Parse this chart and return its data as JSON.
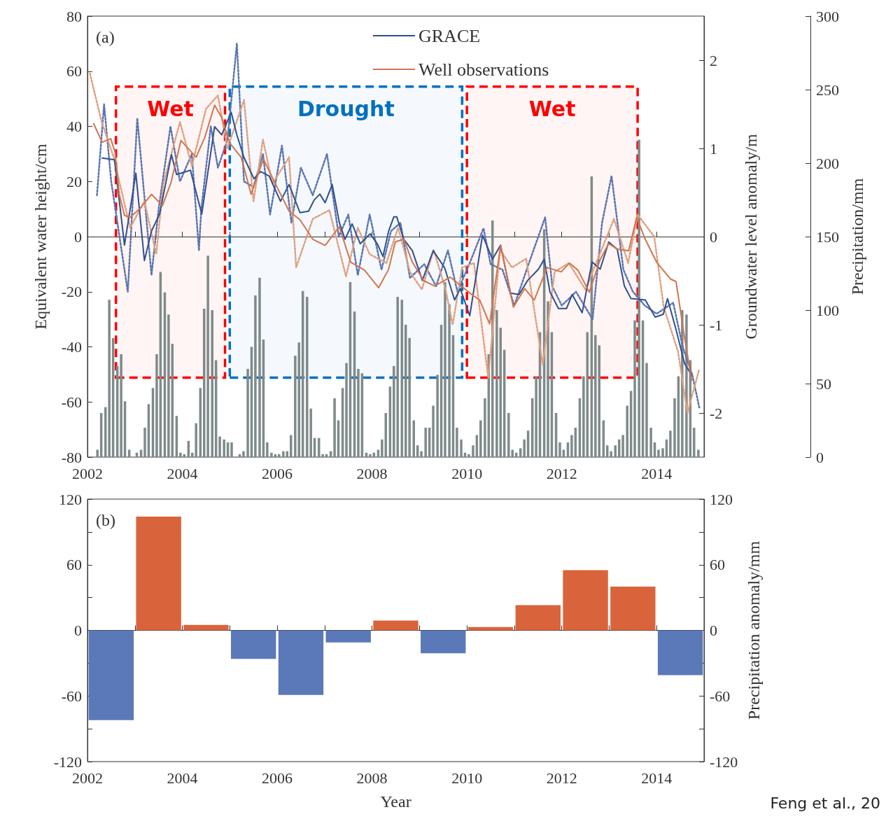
{
  "chart_data": [
    {
      "type": "line",
      "annotations": [
        "(a)"
      ],
      "ylabel": "Equivalent water height/cm",
      "y2label": "Groundwater level anomaly/m",
      "y3label": "Precipitation/mm",
      "xlim": [
        2002,
        2015
      ],
      "xticks": [
        2002,
        {
          "value": 2003,
          "label": null
        },
        2004,
        {
          "value": 2005,
          "label": null
        },
        2006,
        {
          "value": 2007,
          "label": null
        },
        2008,
        {
          "value": 2009,
          "label": null
        },
        2010,
        {
          "value": 2011,
          "label": null
        },
        2012,
        {
          "value": 2013,
          "label": null
        },
        2014
      ],
      "ylim": [
        -80,
        80
      ],
      "yticks": [
        -80,
        -60,
        -40,
        -20,
        0,
        20,
        40,
        60,
        80
      ],
      "y2lim": [
        -2.5,
        2.5
      ],
      "y2ticks": [
        -2,
        -1,
        0,
        1,
        2
      ],
      "y3lim": [
        0,
        300
      ],
      "y3ticks": [
        0,
        50,
        100,
        150,
        200,
        250,
        300
      ],
      "legend": "top",
      "bands": [
        {
          "axis": "x",
          "from": 2002.6,
          "to": 2004.9,
          "label": "Wet",
          "color": "#ff0000"
        },
        {
          "axis": "x",
          "from": 2005.0,
          "to": 2009.9,
          "label": "Drought",
          "color": "#0070c0"
        },
        {
          "axis": "x",
          "from": 2010.0,
          "to": 2013.6,
          "label": "Wet",
          "color": "#ff0000"
        }
      ],
      "series": [
        {
          "type": "bar",
          "axis": "y3",
          "color": "#7f8a8a",
          "x": [
            2002.21,
            2002.29,
            2002.38,
            2002.46,
            2002.54,
            2002.63,
            2002.71,
            2002.79,
            2002.88,
            2002.96,
            2003.04,
            2003.13,
            2003.21,
            2003.29,
            2003.38,
            2003.46,
            2003.54,
            2003.63,
            2003.71,
            2003.79,
            2003.88,
            2003.96,
            2004.04,
            2004.13,
            2004.21,
            2004.29,
            2004.38,
            2004.46,
            2004.54,
            2004.63,
            2004.71,
            2004.79,
            2004.88,
            2004.96,
            2005.04,
            2005.13,
            2005.21,
            2005.29,
            2005.38,
            2005.46,
            2005.54,
            2005.63,
            2005.71,
            2005.79,
            2005.88,
            2005.96,
            2006.04,
            2006.13,
            2006.21,
            2006.29,
            2006.38,
            2006.46,
            2006.54,
            2006.63,
            2006.71,
            2006.79,
            2006.88,
            2006.96,
            2007.04,
            2007.13,
            2007.21,
            2007.29,
            2007.38,
            2007.46,
            2007.54,
            2007.63,
            2007.71,
            2007.79,
            2007.88,
            2007.96,
            2008.04,
            2008.13,
            2008.21,
            2008.29,
            2008.38,
            2008.46,
            2008.54,
            2008.63,
            2008.71,
            2008.79,
            2008.88,
            2008.96,
            2009.04,
            2009.13,
            2009.21,
            2009.29,
            2009.38,
            2009.46,
            2009.54,
            2009.63,
            2009.71,
            2009.79,
            2009.88,
            2009.96,
            2010.04,
            2010.13,
            2010.21,
            2010.29,
            2010.38,
            2010.46,
            2010.54,
            2010.63,
            2010.71,
            2010.79,
            2010.88,
            2010.96,
            2011.04,
            2011.13,
            2011.21,
            2011.29,
            2011.38,
            2011.46,
            2011.54,
            2011.63,
            2011.71,
            2011.79,
            2011.88,
            2011.96,
            2012.04,
            2012.13,
            2012.21,
            2012.29,
            2012.38,
            2012.46,
            2012.54,
            2012.63,
            2012.71,
            2012.79,
            2012.88,
            2012.96,
            2013.04,
            2013.13,
            2013.21,
            2013.29,
            2013.38,
            2013.46,
            2013.54,
            2013.63,
            2013.71,
            2013.79,
            2013.88,
            2013.96,
            2014.04,
            2014.13,
            2014.21,
            2014.29,
            2014.38,
            2014.46,
            2014.54,
            2014.63,
            2014.71,
            2014.79,
            2014.88
          ],
          "values": [
            5,
            30,
            34,
            107,
            81,
            62,
            70,
            38,
            5,
            0,
            3,
            5,
            20,
            36,
            47,
            70,
            126,
            112,
            97,
            77,
            28,
            3,
            2,
            11,
            3,
            23,
            47,
            101,
            137,
            100,
            66,
            14,
            12,
            10,
            10,
            0,
            2,
            4,
            60,
            75,
            110,
            122,
            80,
            10,
            3,
            2,
            2,
            4,
            4,
            15,
            69,
            78,
            113,
            109,
            33,
            13,
            13,
            2,
            2,
            4,
            40,
            25,
            47,
            64,
            119,
            99,
            60,
            57,
            3,
            2,
            3,
            5,
            12,
            30,
            48,
            62,
            109,
            107,
            90,
            81,
            25,
            8,
            4,
            20,
            20,
            35,
            56,
            90,
            119,
            104,
            83,
            20,
            12,
            3,
            2,
            8,
            15,
            25,
            40,
            70,
            161,
            100,
            88,
            73,
            30,
            5,
            3,
            6,
            12,
            18,
            40,
            55,
            85,
            155,
            106,
            85,
            30,
            10,
            5,
            10,
            15,
            20,
            40,
            55,
            85,
            191,
            83,
            76,
            25,
            8,
            4,
            8,
            12,
            15,
            35,
            45,
            93,
            216,
            93,
            64,
            20,
            10,
            5,
            6,
            12,
            18,
            40,
            55,
            100,
            97,
            66,
            20,
            5
          ]
        },
        {
          "line_style": "dotted",
          "color": "#5a74b0",
          "x": [
            2002.2,
            2002.35,
            2002.5,
            2002.85,
            2003.05,
            2003.35,
            2003.5,
            2003.75,
            2003.95,
            2004.2,
            2004.35,
            2004.4,
            2004.6,
            2004.75,
            2004.95,
            2005.15,
            2005.3,
            2005.5,
            2005.7,
            2005.85,
            2006.1,
            2006.3,
            2006.5,
            2006.75,
            2007.05,
            2007.3,
            2007.5,
            2007.7,
            2007.95,
            2008.2,
            2008.4,
            2008.6,
            2008.8,
            2009.1,
            2009.35,
            2009.6,
            2009.8,
            2010.05,
            2010.35,
            2010.5,
            2010.75,
            2011.0,
            2011.3,
            2011.65,
            2011.8,
            2012.0,
            2012.3,
            2012.65,
            2012.85,
            2013.05,
            2013.3,
            2013.5,
            2013.75,
            2014.0,
            2014.35,
            2014.55,
            2014.75,
            2014.9
          ],
          "values": [
            15,
            48,
            20,
            -20,
            43,
            -14,
            10,
            40,
            20,
            30,
            -5,
            10,
            40,
            25,
            35,
            70,
            20,
            18,
            30,
            8,
            33,
            5,
            25,
            15,
            30,
            0,
            8,
            -14,
            8,
            -12,
            2,
            5,
            -15,
            -10,
            -18,
            -5,
            -20,
            -10,
            3,
            -10,
            -12,
            -25,
            -10,
            7,
            -18,
            -25,
            -20,
            -30,
            5,
            22,
            -12,
            -20,
            -25,
            -28,
            -24,
            -40,
            -50,
            -62
          ]
        },
        {
          "line_style": "dotted",
          "axis": "y2",
          "color": "#e0a080",
          "x": [
            2002.05,
            2002.3,
            2002.55,
            2002.9,
            2003.2,
            2003.45,
            2003.6,
            2003.95,
            2004.2,
            2004.5,
            2004.75,
            2004.95,
            2005.3,
            2005.5,
            2005.7,
            2005.9,
            2006.25,
            2006.4,
            2006.75,
            2007.1,
            2007.45,
            2007.7,
            2007.95,
            2008.3,
            2008.55,
            2008.8,
            2009.05,
            2009.3,
            2009.55,
            2009.7,
            2009.9,
            2010.15,
            2010.45,
            2010.7,
            2010.95,
            2011.25,
            2011.6,
            2011.85,
            2012.15,
            2012.5,
            2012.8,
            2013.1,
            2013.4,
            2013.6,
            2013.95,
            2014.15,
            2014.45,
            2014.65,
            2014.9
          ],
          "values": [
            1.85,
            1.3,
            0.9,
            0.1,
            0.4,
            -0.2,
            0.6,
            1.3,
            0.8,
            1.45,
            1.6,
            1.0,
            1.55,
            0.4,
            1.1,
            0.6,
            0.9,
            -0.35,
            0.2,
            0.3,
            -0.45,
            0.1,
            -0.2,
            -0.3,
            0.1,
            -0.4,
            -0.6,
            -0.15,
            -0.6,
            -1.0,
            -0.35,
            -0.3,
            -1.6,
            -0.15,
            -0.35,
            -0.25,
            -1.45,
            -0.4,
            -0.3,
            -0.6,
            -0.2,
            0.2,
            -0.3,
            0.25,
            0.0,
            -0.8,
            -1.3,
            -2.0,
            -1.5
          ]
        },
        {
          "name": "GRACE",
          "line_style": "solid",
          "color": "#2f4f8f",
          "x": [
            2002.31,
            2002.57,
            2002.78,
            2003.02,
            2003.2,
            2003.35,
            2003.52,
            2003.77,
            2003.88,
            2004.17,
            2004.41,
            2004.68,
            2004.83,
            2005.03,
            2005.15,
            2005.3,
            2005.51,
            2005.65,
            2005.83,
            2006.07,
            2006.25,
            2006.48,
            2006.66,
            2006.78,
            2006.9,
            2007.01,
            2007.16,
            2007.31,
            2007.43,
            2007.58,
            2007.75,
            2007.96,
            2008.11,
            2008.23,
            2008.35,
            2008.46,
            2008.52,
            2008.67,
            2008.85,
            2009.06,
            2009.29,
            2009.53,
            2009.74,
            2009.86,
            2010.06,
            2010.33,
            2010.54,
            2010.71,
            2010.92,
            2011.1,
            2011.28,
            2011.51,
            2011.63,
            2011.75,
            2011.93,
            2012.1,
            2012.22,
            2012.43,
            2012.64,
            2012.81,
            2012.99,
            2013.17,
            2013.32,
            2013.46,
            2013.76,
            2013.97,
            2014.14,
            2014.23,
            2014.41,
            2014.59,
            2014.74
          ],
          "values": [
            28.5,
            27.9,
            -3.1,
            23.0,
            -8.7,
            2.0,
            8.2,
            29.7,
            22.5,
            24.1,
            8.2,
            39.9,
            36.9,
            45.1,
            36.9,
            28.7,
            21.0,
            23.6,
            22.0,
            12.8,
            18.9,
            8.7,
            9.2,
            13.3,
            15.4,
            12.3,
            18.9,
            5.1,
            -1.0,
            4.6,
            -2.6,
            1.0,
            -2.6,
            -7.2,
            2.0,
            7.2,
            7.2,
            -1.0,
            -5.1,
            -15.9,
            -5.1,
            -11.3,
            -23.0,
            -18.9,
            -28.7,
            0.5,
            -8.2,
            -3.1,
            -20.5,
            -21.0,
            -15.9,
            -11.8,
            -8.2,
            -20.0,
            -26.1,
            -26.1,
            -21.0,
            -27.6,
            -9.2,
            -11.8,
            -2.0,
            -4.6,
            -17.9,
            -22.5,
            -23.0,
            -29.2,
            -28.2,
            -22.5,
            -33.8,
            -46.1,
            -50.2
          ]
        },
        {
          "name": "Well observations",
          "line_style": "solid",
          "axis": "y2",
          "color": "#d2754f",
          "x": [
            2002.13,
            2002.31,
            2002.49,
            2002.58,
            2002.67,
            2002.78,
            2002.9,
            2003.11,
            2003.35,
            2003.58,
            2003.76,
            2003.97,
            2004.29,
            2004.47,
            2004.68,
            2004.83,
            2005.0,
            2005.24,
            2005.45,
            2005.71,
            2005.95,
            2006.25,
            2006.48,
            2006.75,
            2007.01,
            2007.31,
            2007.55,
            2007.84,
            2008.14,
            2008.35,
            2008.49,
            2008.67,
            2008.85,
            2009.09,
            2009.32,
            2009.65,
            2009.88,
            2010.06,
            2010.27,
            2010.48,
            2010.71,
            2010.98,
            2011.22,
            2011.42,
            2011.69,
            2011.99,
            2012.16,
            2012.34,
            2012.58,
            2012.81,
            2012.99,
            2013.17,
            2013.41,
            2013.58,
            2013.76,
            2014.0,
            2014.29,
            2014.41,
            2014.59,
            2014.74
          ],
          "values": [
            1.28,
            1.07,
            1.11,
            0.96,
            0.48,
            0.24,
            0.22,
            0.32,
            0.48,
            0.35,
            0.61,
            1.09,
            0.9,
            1.12,
            1.49,
            1.35,
            1.06,
            0.9,
            0.48,
            0.88,
            0.61,
            0.29,
            0.19,
            -0.03,
            -0.1,
            0.11,
            -0.29,
            -0.38,
            -0.58,
            -0.37,
            -0.06,
            -0.03,
            -0.29,
            -0.5,
            -0.56,
            -0.46,
            -0.56,
            -0.64,
            -0.72,
            -0.99,
            -0.1,
            -0.8,
            -0.59,
            -0.72,
            -0.35,
            -0.4,
            -0.3,
            -0.38,
            -0.63,
            -0.26,
            -0.08,
            -0.14,
            -0.16,
            0.22,
            -0.03,
            -0.29,
            -0.48,
            -0.51,
            -1.15,
            -1.63
          ]
        }
      ]
    },
    {
      "type": "bar",
      "annotations": [
        "(b)",
        "Feng et al., 20"
      ],
      "xlabel": "Year",
      "y2label": "Precipitation anomaly/mm",
      "xlim": [
        2002,
        2015
      ],
      "xticks": [
        2002,
        {
          "value": 2003,
          "label": null
        },
        2004,
        {
          "value": 2005,
          "label": null
        },
        2006,
        {
          "value": 2007,
          "label": null
        },
        2008,
        {
          "value": 2009,
          "label": null
        },
        2010,
        {
          "value": 2011,
          "label": null
        },
        2012,
        {
          "value": 2013,
          "label": null
        },
        2014
      ],
      "ylim": [
        -120,
        120
      ],
      "yticks": [
        -120,
        {
          "value": -90,
          "label": null
        },
        -60,
        {
          "value": -30,
          "label": null
        },
        0,
        {
          "value": 30,
          "label": null
        },
        60,
        {
          "value": 90,
          "label": null
        },
        120
      ],
      "y2lim": [
        -120,
        120
      ],
      "y2ticks": [
        -120,
        {
          "value": -90,
          "label": null
        },
        -60,
        {
          "value": -30,
          "label": null
        },
        0,
        {
          "value": 30,
          "label": null
        },
        60,
        {
          "value": 90,
          "label": null
        },
        120
      ],
      "x": [
        2002.5,
        2003.5,
        2004.5,
        2005.5,
        2006.5,
        2007.5,
        2008.5,
        2009.5,
        2010.5,
        2011.5,
        2012.5,
        2013.5,
        2014.5
      ],
      "values": [
        -82,
        104,
        5,
        -26,
        -59,
        -11,
        9,
        -21,
        3,
        23,
        55,
        40,
        -41
      ],
      "colors": [
        "#5b78b8",
        "#d9643c",
        "#d9643c",
        "#5b78b8",
        "#5b78b8",
        "#5b78b8",
        "#d9643c",
        "#5b78b8",
        "#d9643c",
        "#d9643c",
        "#d9643c",
        "#d9643c",
        "#5b78b8"
      ]
    }
  ]
}
